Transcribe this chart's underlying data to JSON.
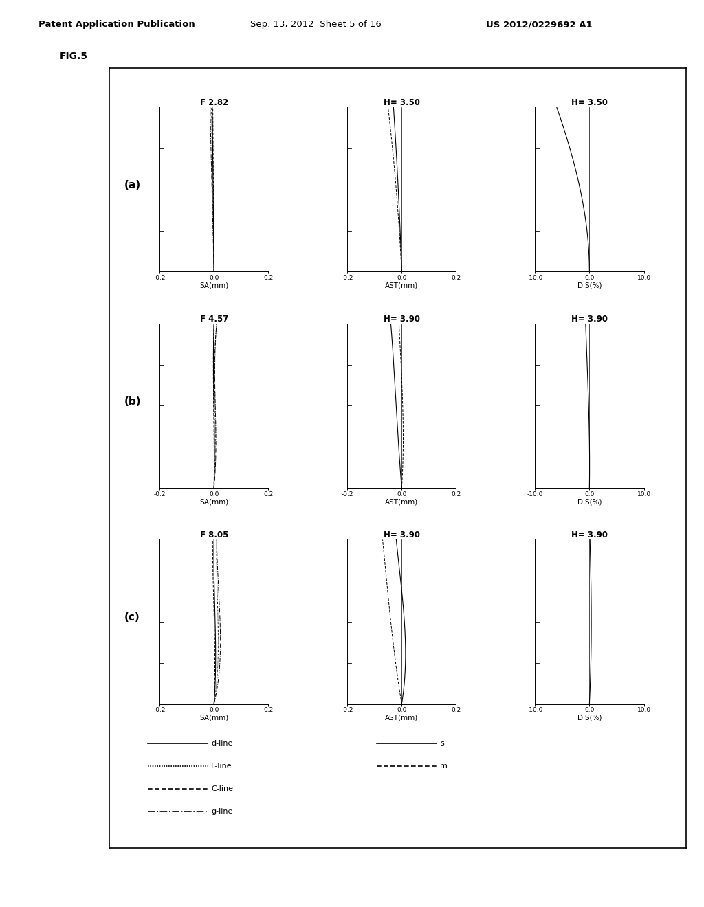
{
  "header_left": "Patent Application Publication",
  "header_center": "Sep. 13, 2012  Sheet 5 of 16",
  "header_right": "US 2012/0229692 A1",
  "fig_label": "FIG.5",
  "rows": [
    {
      "label": "(a)",
      "sa_title": "F 2.82",
      "ast_title": "H= 3.50",
      "dis_title": "H= 3.50"
    },
    {
      "label": "(b)",
      "sa_title": "F 4.57",
      "ast_title": "H= 3.90",
      "dis_title": "H= 3.90"
    },
    {
      "label": "(c)",
      "sa_title": "F 8.05",
      "ast_title": "H= 3.90",
      "dis_title": "H= 3.90"
    }
  ],
  "legend_left": [
    {
      "label": "d-line",
      "style": "solid"
    },
    {
      "label": "F-line",
      "style": "dotted2"
    },
    {
      "label": "C-line",
      "style": "dashed"
    },
    {
      "label": "g-line",
      "style": "dashdot"
    }
  ],
  "legend_right": [
    {
      "label": "s",
      "style": "solid"
    },
    {
      "label": "m",
      "style": "dashed"
    }
  ],
  "background": "#ffffff"
}
